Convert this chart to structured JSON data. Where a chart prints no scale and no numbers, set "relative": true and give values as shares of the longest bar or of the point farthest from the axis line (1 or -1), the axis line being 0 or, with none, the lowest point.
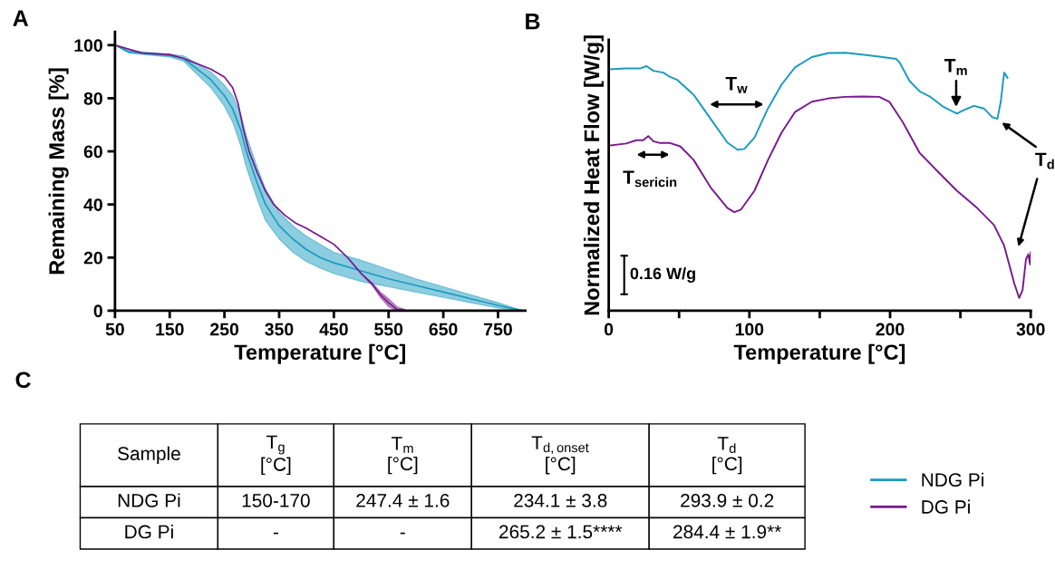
{
  "chart_data": [
    {
      "type": "line",
      "title": "A",
      "xlabel": "Temperature [°C]",
      "ylabel": "Remaining Mass [%]",
      "xlim": [
        50,
        800
      ],
      "ylim": [
        0,
        105
      ],
      "xticks": [
        50,
        150,
        250,
        350,
        450,
        550,
        650,
        750
      ],
      "yticks": [
        0,
        20,
        40,
        60,
        80,
        100
      ],
      "grid": false,
      "legend": "right",
      "marker": "none",
      "line_style": "solid",
      "series": [
        {
          "name": "NDG Pi",
          "color": "#1a9bbf",
          "x": [
            50,
            75,
            100,
            150,
            175,
            200,
            225,
            250,
            265,
            280,
            290,
            300,
            310,
            325,
            350,
            375,
            400,
            425,
            450,
            475,
            500,
            550,
            600,
            650,
            700,
            750,
            795
          ],
          "values": [
            100,
            97.5,
            97,
            96,
            95,
            91,
            87,
            81,
            76,
            68,
            60,
            54,
            48,
            40,
            32,
            27,
            23,
            20,
            18,
            16.5,
            15,
            12,
            9.5,
            7,
            4.5,
            2,
            0
          ],
          "lower": [
            100,
            97,
            96.5,
            95.5,
            94,
            89,
            84,
            77,
            71,
            62,
            54,
            48,
            42,
            34,
            27,
            22,
            18.5,
            16,
            14,
            12.5,
            11,
            9,
            7,
            5,
            3,
            1,
            0
          ],
          "upper": [
            100,
            98,
            97.5,
            96.5,
            96,
            93,
            90,
            85,
            81,
            74,
            66,
            60,
            54,
            46,
            37,
            32,
            28,
            25,
            22,
            20.5,
            19,
            15.5,
            12,
            9,
            6,
            3,
            0
          ]
        },
        {
          "name": "DG Pi",
          "color": "#7a1a8e",
          "x": [
            50,
            100,
            150,
            175,
            200,
            225,
            250,
            265,
            275,
            285,
            295,
            310,
            325,
            340,
            360,
            380,
            400,
            425,
            450,
            475,
            500,
            520,
            535,
            550,
            565,
            580
          ],
          "values": [
            100,
            97,
            96.5,
            95,
            93,
            91,
            88,
            84,
            78,
            68,
            60,
            52,
            45,
            40,
            36,
            33,
            31,
            28,
            25,
            20,
            14,
            10,
            6,
            3,
            0.5,
            0
          ],
          "lower": [
            100,
            97,
            96.5,
            95,
            93,
            91,
            88,
            84,
            78,
            68,
            60,
            52,
            45,
            40,
            36,
            33,
            31,
            28,
            25,
            20,
            14,
            9.5,
            5,
            1.5,
            0,
            0
          ],
          "upper": [
            100,
            97,
            96.5,
            95,
            93,
            91,
            88,
            84,
            78,
            68,
            60,
            52,
            45,
            40,
            36,
            33,
            31,
            28,
            25,
            20,
            14,
            10.5,
            7,
            4.5,
            1.5,
            0.5
          ]
        }
      ]
    },
    {
      "type": "line",
      "title": "B",
      "xlabel": "Temperature [°C]",
      "ylabel": "Normalized Heat Flow [W/g]",
      "relative": true,
      "xlim": [
        0,
        300
      ],
      "xticks": [
        0,
        {
          "value": 50,
          "label": null
        },
        100,
        {
          "value": 150,
          "label": null
        },
        200,
        {
          "value": 250,
          "label": null
        },
        300
      ],
      "grid": false,
      "marker": "none",
      "line_style": "solid",
      "series": [
        {
          "color": "#1a9bbf",
          "x": [
            0,
            12.5,
            22.1,
            26.9,
            31.7,
            38.8,
            43.6,
            48.4,
            60.4,
            72.4,
            84.4,
            91.6,
            96.4,
            103.6,
            113.2,
            122.8,
            132.4,
            144.4,
            156.4,
            168.3,
            180.3,
            192.3,
            204.3,
            206.7,
            213.9,
            221.1,
            228.3,
            237.9,
            247.5,
            252.3,
            259.5,
            266.7,
            272.7,
            276.3,
            278.7,
            281.1,
            283.5
          ],
          "values": [
            0.936,
            0.939,
            0.939,
            0.948,
            0.93,
            0.923,
            0.906,
            0.896,
            0.837,
            0.744,
            0.651,
            0.624,
            0.627,
            0.671,
            0.784,
            0.876,
            0.943,
            0.983,
            0.999,
            1.0,
            0.993,
            0.985,
            0.976,
            0.963,
            0.89,
            0.85,
            0.83,
            0.79,
            0.764,
            0.777,
            0.794,
            0.784,
            0.75,
            0.744,
            0.81,
            0.923,
            0.903
          ]
        },
        {
          "color": "#7a1a8e",
          "x": [
            0,
            12.5,
            19.7,
            24.5,
            28.1,
            31.7,
            36.5,
            43.6,
            50.8,
            60.4,
            72.4,
            84.4,
            89.2,
            94.0,
            103.6,
            113.2,
            122.8,
            132.4,
            144.4,
            156.4,
            168.3,
            180.3,
            192.3,
            199.5,
            209.1,
            221.1,
            233.1,
            247.5,
            261.9,
            273.9,
            281.1,
            288.3,
            291.8,
            294.2,
            296.6,
            298.3,
            299.5,
            300
          ],
          "values": [
            0.64,
            0.648,
            0.661,
            0.661,
            0.677,
            0.657,
            0.65,
            0.65,
            0.637,
            0.584,
            0.478,
            0.398,
            0.382,
            0.392,
            0.465,
            0.584,
            0.69,
            0.77,
            0.81,
            0.823,
            0.829,
            0.83,
            0.829,
            0.81,
            0.73,
            0.611,
            0.544,
            0.465,
            0.398,
            0.332,
            0.252,
            0.106,
            0.049,
            0.08,
            0.199,
            0.219,
            0.179,
            0.226
          ]
        }
      ],
      "annotations": [
        "T$_{w}$",
        {
          "text": "T$_{m}$",
          "x": 247,
          "y": 0.78
        },
        "T$_{sericin}$",
        {
          "text": "T$_{d}$",
          "x": 278,
          "y": 0.735
        },
        "0.16 W/g"
      ]
    },
    {
      "type": "other",
      "title": "C",
      "categories": [
        "Sample",
        "T$_{g}$\n[°C]",
        "T$_{m}$\n[°C]",
        "T$_{d,onset}$\n[°C]",
        "T$_{d}$\n[°C]"
      ],
      "cell_labels": [
        [
          "NDG Pi",
          "150-170",
          "247.4 ± 1.6",
          "234.1 ± 3.8",
          "293.9 ± 0.2"
        ],
        [
          "DG Pi",
          "-",
          "-",
          "265.2 ± 1.5****",
          "284.4 ± 1.9**"
        ]
      ]
    }
  ]
}
